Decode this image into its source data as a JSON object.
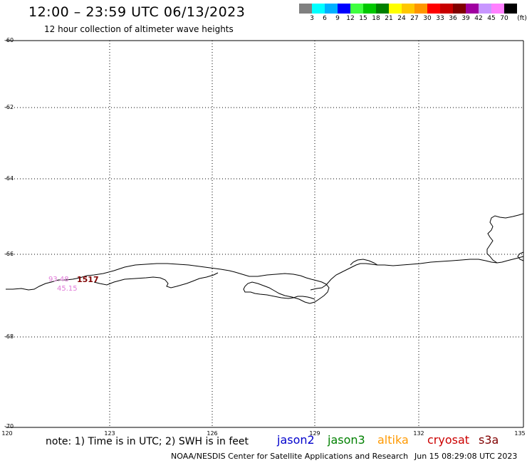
{
  "header": {
    "title": "12:00 – 23:59 UTC 06/13/2023",
    "subtitle": "12 hour collection of altimeter wave heights"
  },
  "legend": {
    "unit": "(ft)",
    "items": [
      {
        "label": "3",
        "color": "#808080"
      },
      {
        "label": "6",
        "color": "#00ffff"
      },
      {
        "label": "9",
        "color": "#00b0ff"
      },
      {
        "label": "12",
        "color": "#0000ff"
      },
      {
        "label": "15",
        "color": "#40ff40"
      },
      {
        "label": "18",
        "color": "#00c800"
      },
      {
        "label": "21",
        "color": "#008000"
      },
      {
        "label": "24",
        "color": "#ffff00"
      },
      {
        "label": "27",
        "color": "#ffc800"
      },
      {
        "label": "30",
        "color": "#ff9600"
      },
      {
        "label": "33",
        "color": "#ff0000"
      },
      {
        "label": "36",
        "color": "#c80000"
      },
      {
        "label": "39",
        "color": "#800000"
      },
      {
        "label": "42",
        "color": "#a000a0"
      },
      {
        "label": "45",
        "color": "#c896ff"
      },
      {
        "label": "70",
        "color": "#ff80ff"
      },
      {
        "label": "",
        "color": "#000000"
      }
    ]
  },
  "map": {
    "lat_labels": [
      "-60",
      "-62",
      "-64",
      "-66",
      "-68",
      "-70"
    ],
    "lon_labels": [
      "120",
      "123",
      "126",
      "129",
      "132",
      "135"
    ],
    "observations": {
      "value_1": "93.48",
      "value_2": "45.15",
      "pass_id": "1517",
      "value_color": "#e07ad8",
      "pass_color": "#800000"
    }
  },
  "footer": {
    "note": "note: 1) Time is in UTC; 2) SWH is in feet",
    "satellites": [
      {
        "name": "jason2",
        "color": "#0000cc"
      },
      {
        "name": "jason3",
        "color": "#008000"
      },
      {
        "name": "altika",
        "color": "#ff9900"
      },
      {
        "name": "cryosat",
        "color": "#cc0000"
      },
      {
        "name": "s3a",
        "color": "#800000"
      }
    ],
    "credit": "NOAA/NESDIS Center for Satellite Applications and Research",
    "timestamp": "Jun 15 08:29:08 UTC 2023"
  }
}
